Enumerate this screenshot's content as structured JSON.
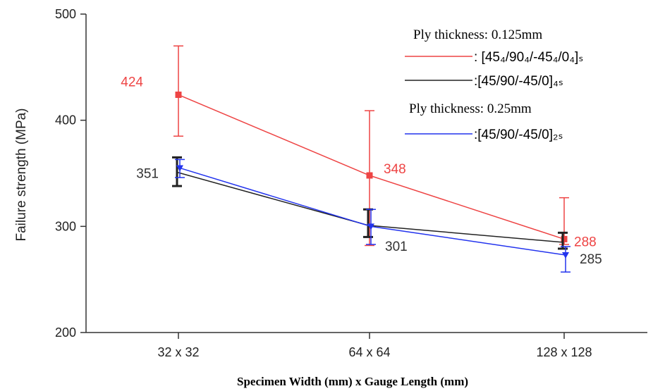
{
  "chart_data": {
    "type": "line",
    "title": "",
    "xlabel": "Specimen Width (mm) x Gauge Length (mm)",
    "ylabel": "Failure strength (MPa)",
    "ylim": [
      200,
      500
    ],
    "yticks": [
      200,
      300,
      400,
      500
    ],
    "categories": [
      "32 x 32",
      "64 x 64",
      "128 x 128"
    ],
    "grid": false,
    "legend_position": "top-right",
    "legend_groups": [
      {
        "heading": "Ply thickness: 0.125mm",
        "series_indices": [
          0,
          1
        ]
      },
      {
        "heading": "Ply thickness: 0.25mm",
        "series_indices": [
          2
        ]
      }
    ],
    "series": [
      {
        "name": ": [45₄/90₄/-45₄/0₄]ₛ",
        "color": "#ee4444",
        "marker": "square",
        "values": [
          424,
          348,
          288
        ],
        "error": [
          [
            385,
            470
          ],
          [
            282,
            409
          ],
          [
            283,
            327
          ]
        ],
        "labels": [
          "424",
          "348",
          "288"
        ]
      },
      {
        "name": ":[45/90/-45/0]₄ₛ",
        "color": "#222222",
        "marker": "none",
        "values": [
          351,
          301,
          285
        ],
        "error": [
          [
            338,
            365
          ],
          [
            290,
            316
          ],
          [
            279,
            294
          ]
        ],
        "labels": [
          "351",
          "301",
          "285"
        ]
      },
      {
        "name": ":[45/90/-45/0]₂ₛ",
        "color": "#2233ee",
        "marker": "triangle",
        "values": [
          355,
          300,
          273
        ],
        "error": [
          [
            346,
            363
          ],
          [
            283,
            316
          ],
          [
            257,
            281
          ]
        ],
        "labels": []
      }
    ]
  }
}
